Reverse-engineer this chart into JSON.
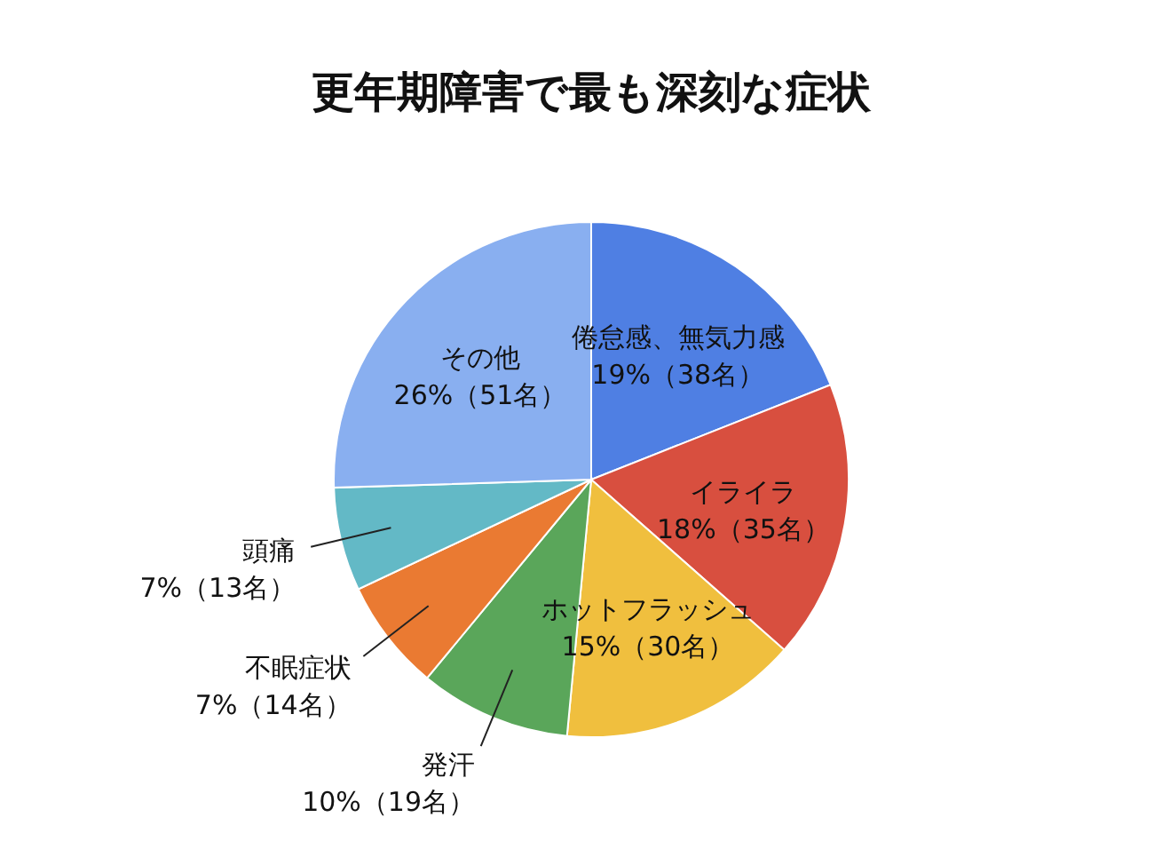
{
  "chart_data": {
    "type": "pie",
    "title": "更年期障害で最も深刻な症状",
    "categories": [
      "倦怠感、無気力感",
      "イライラ",
      "ホットフラッシュ",
      "発汗",
      "不眠症状",
      "頭痛",
      "その他"
    ],
    "values": [
      38,
      35,
      30,
      19,
      14,
      13,
      51
    ],
    "colors": [
      "#4f7fe3",
      "#d84f3f",
      "#f0bf3e",
      "#5aa65a",
      "#ea7a32",
      "#63b9c6",
      "#89aff0"
    ],
    "value_labels": [
      "19%（38名）",
      "18%（35名）",
      "15%（30名）",
      "10%（19名）",
      "7%（14名）",
      "7%（13名）",
      "26%（51名）"
    ],
    "legend": false
  }
}
